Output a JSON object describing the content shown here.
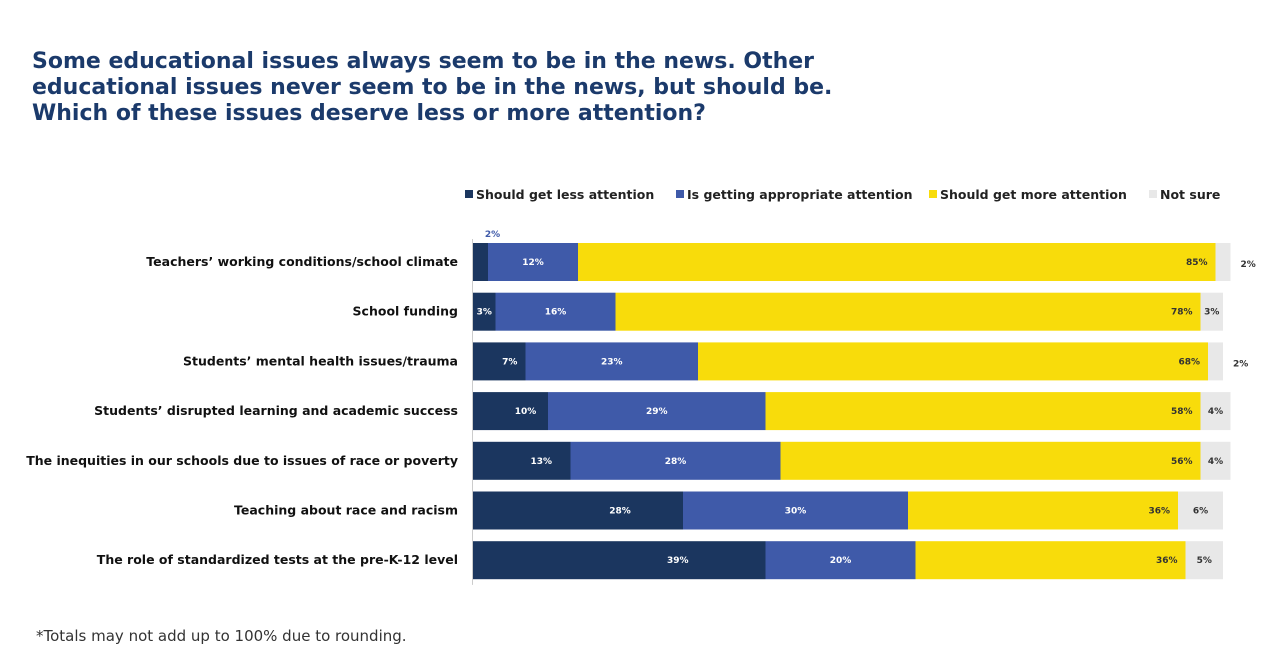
{
  "title_lines": [
    "Some educational issues always seem to be in the news. Other",
    "educational issues never seem to be in the news, but should be.",
    "Which of these issues deserve less or more attention?"
  ],
  "footnote": "*Totals may not add up to 100% due to rounding.",
  "chart_data": {
    "type": "bar",
    "orientation": "horizontal",
    "stacked": true,
    "title": "Some educational issues always seem to be in the news. Other educational issues never seem to be in the news, but should be. Which of these issues deserve less or more attention?",
    "categories": [
      "Teachers’ working conditions/school climate",
      "School funding",
      "Students’ mental health issues/trauma",
      "Students’ disrupted learning and academic success",
      "The inequities in our schools due to issues of race or poverty",
      "Teaching about race and racism",
      "The role of standardized tests at the pre-K-12 level"
    ],
    "series": [
      {
        "name": "Should get less attention",
        "color": "#1b365f",
        "values": [
          2,
          3,
          7,
          10,
          13,
          28,
          39
        ]
      },
      {
        "name": "Is getting appropriate attention",
        "color": "#3f5aa9",
        "values": [
          12,
          16,
          23,
          29,
          28,
          30,
          20
        ]
      },
      {
        "name": "Should get more attention",
        "color": "#f8dc0b",
        "values": [
          85,
          78,
          68,
          58,
          56,
          36,
          36
        ]
      },
      {
        "name": "Not sure",
        "color": "#e8e8e8",
        "values": [
          2,
          3,
          2,
          4,
          4,
          6,
          5
        ]
      }
    ],
    "value_suffix": "%",
    "xlim": [
      0,
      100
    ],
    "legend_position": "top",
    "grid": false
  }
}
